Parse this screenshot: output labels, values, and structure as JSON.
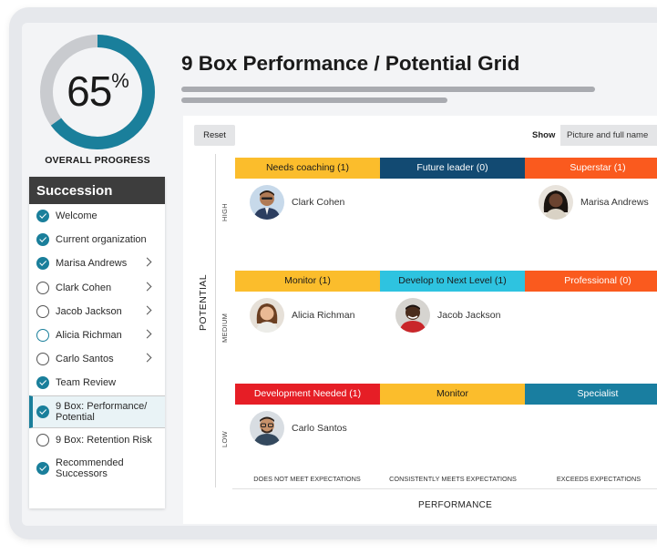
{
  "progress": {
    "value": 65,
    "number": "65",
    "unit": "%",
    "label": "OVERALL PROGRESS",
    "accent": "#1a7f9b",
    "track": "#c9cbcf"
  },
  "sidebar": {
    "title": "Succession",
    "items": [
      {
        "label": "Welcome",
        "status": "done",
        "chevron": false
      },
      {
        "label": "Current organization",
        "status": "done",
        "chevron": false
      },
      {
        "label": "Marisa Andrews",
        "status": "done",
        "chevron": true
      },
      {
        "label": "Clark Cohen",
        "status": "open",
        "chevron": true
      },
      {
        "label": "Jacob Jackson",
        "status": "open",
        "chevron": true
      },
      {
        "label": "Alicia Richman",
        "status": "partial",
        "chevron": true
      },
      {
        "label": "Carlo Santos",
        "status": "open",
        "chevron": true
      },
      {
        "label": "Team Review",
        "status": "done",
        "chevron": false
      },
      {
        "label": "9 Box: Performance/ Potential",
        "status": "done",
        "chevron": false,
        "active": true
      },
      {
        "label": "9 Box: Retention Risk",
        "status": "open",
        "chevron": false
      },
      {
        "label": "Recommended Successors",
        "status": "done",
        "chevron": false
      }
    ]
  },
  "header": {
    "title": "9 Box Performance / Potential Grid"
  },
  "toolbar": {
    "reset_label": "Reset",
    "show_label": "Show",
    "show_value": "Picture and full name"
  },
  "axes": {
    "y_label": "POTENTIAL",
    "x_label": "PERFORMANCE",
    "rows": [
      "HIGH",
      "MEDIUM",
      "LOW"
    ],
    "columns": [
      "DOES NOT MEET EXPECTATIONS",
      "CONSISTENTLY MEETS EXPECTATIONS",
      "EXCEEDS EXPECTATIONS"
    ]
  },
  "grid": {
    "high": [
      {
        "label": "Needs coaching (1)",
        "color": "#fbbd2c",
        "person": "Clark Cohen"
      },
      {
        "label": "Future leader (0)",
        "color": "#124a72",
        "person": ""
      },
      {
        "label": "Superstar (1)",
        "color": "#fa5a1e",
        "person": "Marisa Andrews"
      }
    ],
    "medium": [
      {
        "label": "Monitor (1)",
        "color": "#fbbd2c",
        "person": "Alicia Richman"
      },
      {
        "label": "Develop to Next Level (1)",
        "color": "#2ec3e0",
        "person": "Jacob Jackson"
      },
      {
        "label": "Professional (0)",
        "color": "#fa5a1e",
        "person": ""
      }
    ],
    "low": [
      {
        "label": "Development Needed (1)",
        "color": "#e61e26",
        "person": "Carlo Santos"
      },
      {
        "label": "Monitor",
        "color": "#fbbd2c",
        "person": ""
      },
      {
        "label": "Specialist",
        "color": "#197ea0",
        "person": ""
      }
    ]
  }
}
